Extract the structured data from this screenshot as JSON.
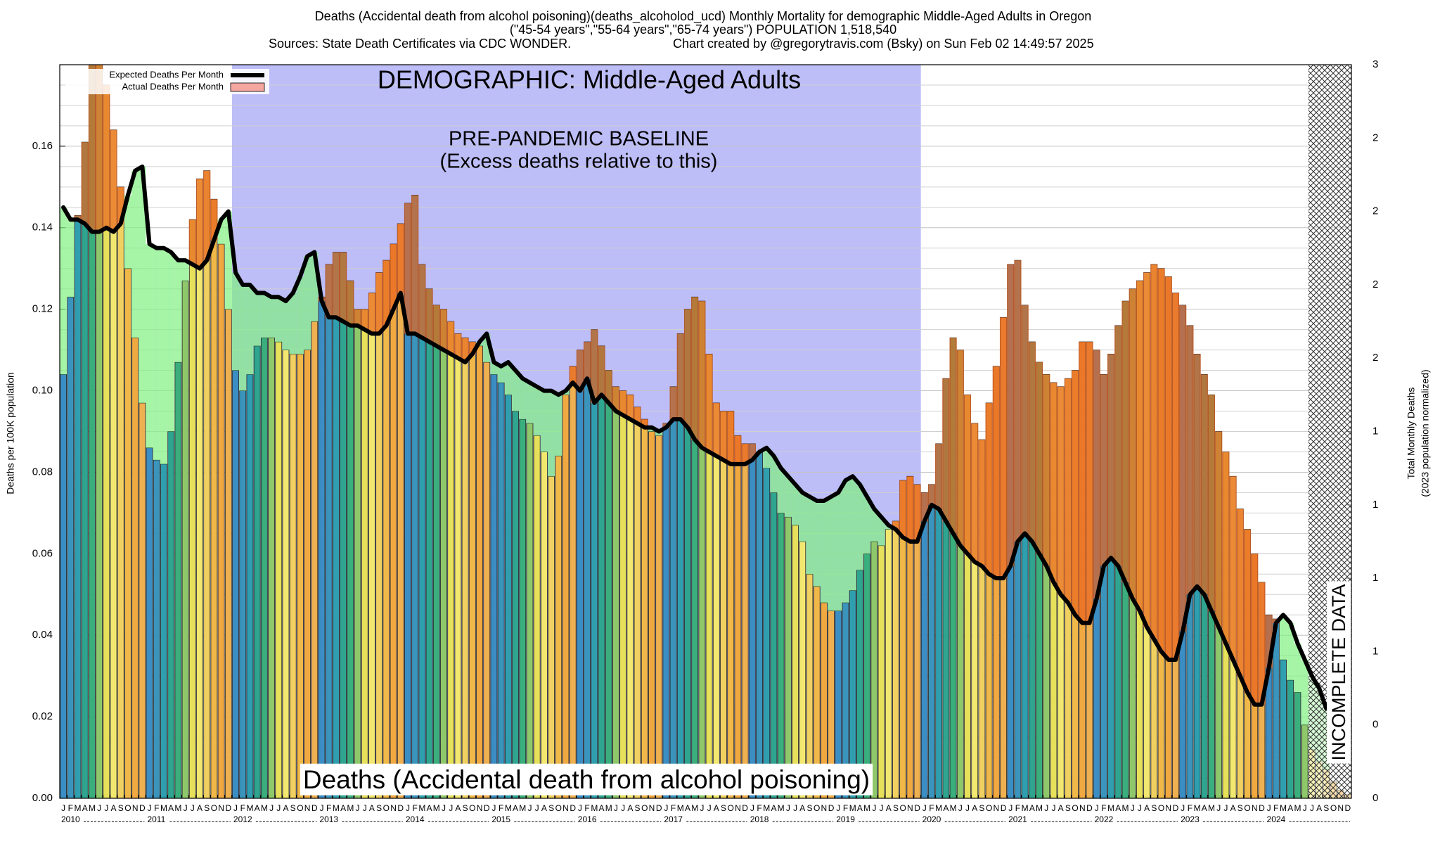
{
  "chart_data": {
    "type": "bar",
    "title": "Deaths (Accidental death from alcohol poisoning)(deaths_alcoholod_ucd) Monthly Mortality for demographic Middle-Aged Adults in Oregon",
    "subtitle": "(\"45-54 years\",\"55-64 years\",\"65-74 years\") POPULATION 1,518,540",
    "source": "Sources: State Death Certificates via CDC WONDER.",
    "credit": "Chart created by @gregorytravis.com (Bsky) on Sun Feb 02 14:49:57 2025",
    "y_label": "Deaths per 100K population",
    "y2_label": "Total Monthly Deaths",
    "y2_sublabel": "(2023 population normalized)",
    "annotations": {
      "demographic": "DEMOGRAPHIC: Middle-Aged Adults",
      "baseline": "PRE-PANDEMIC BASELINE",
      "baseline_note": "(Excess deaths relative to this)",
      "incomplete": "INCOMPLETE DATA",
      "cause": "Deaths (Accidental death from alcohol poisoning)"
    },
    "categories": [
      "J",
      "F",
      "M",
      "A",
      "M",
      "J",
      "J",
      "A",
      "S",
      "O",
      "N",
      "D",
      "J",
      "F",
      "M",
      "A",
      "M",
      "J",
      "J",
      "A",
      "S",
      "O",
      "N",
      "D",
      "J",
      "F",
      "M",
      "A",
      "M",
      "J",
      "J",
      "A",
      "S",
      "O",
      "N",
      "D",
      "J",
      "F",
      "M",
      "A",
      "M",
      "J",
      "J",
      "A",
      "S",
      "O",
      "N",
      "D",
      "J",
      "F",
      "M",
      "A",
      "M",
      "J",
      "J",
      "A",
      "S",
      "O",
      "N",
      "D",
      "J",
      "F",
      "M",
      "A",
      "M",
      "J",
      "J",
      "A",
      "S",
      "O",
      "N",
      "D",
      "J",
      "F",
      "M",
      "A",
      "M",
      "J",
      "J",
      "A",
      "S",
      "O",
      "N",
      "D",
      "J",
      "F",
      "M",
      "A",
      "M",
      "J",
      "J",
      "A",
      "S",
      "O",
      "N",
      "D",
      "J",
      "F",
      "M",
      "A",
      "M",
      "J",
      "J",
      "A",
      "S",
      "O",
      "N",
      "D",
      "J",
      "F",
      "M",
      "A",
      "M",
      "J",
      "J",
      "A",
      "S",
      "O",
      "N",
      "D",
      "J",
      "F",
      "M",
      "A",
      "M",
      "J",
      "J",
      "A",
      "S",
      "O",
      "N",
      "D",
      "J",
      "F",
      "M",
      "A",
      "M",
      "J",
      "J",
      "A",
      "S",
      "O",
      "N",
      "D",
      "J",
      "F",
      "M",
      "A",
      "M",
      "J",
      "J",
      "A",
      "S",
      "O",
      "N",
      "D",
      "J",
      "F",
      "M",
      "A",
      "M",
      "J",
      "J",
      "A",
      "S",
      "O",
      "N",
      "D",
      "J",
      "F",
      "M",
      "A",
      "M",
      "J",
      "J",
      "A",
      "S",
      "O",
      "N",
      "D"
    ],
    "years": [
      "2010",
      "2011",
      "2012",
      "2013",
      "2014",
      "2015",
      "2016",
      "2017",
      "2018",
      "2019",
      "2020",
      "2021",
      "2022",
      "2023",
      "2024"
    ],
    "month_colors": [
      "#3b8ec4",
      "#3a94bc",
      "#2f9fb0",
      "#2fa590",
      "#3aae7c",
      "#8ec86a",
      "#e6e05a",
      "#f2e870",
      "#f0d060",
      "#f0b848",
      "#f0a840",
      "#eeb050"
    ],
    "excess_color": "#e8641e",
    "deficit_color": "#80f080",
    "series": [
      {
        "name": "Expected Deaths Per Month",
        "color": "#000000",
        "values": [
          0.145,
          0.142,
          0.142,
          0.141,
          0.139,
          0.139,
          0.14,
          0.139,
          0.141,
          0.148,
          0.154,
          0.155,
          0.136,
          0.135,
          0.135,
          0.134,
          0.132,
          0.132,
          0.131,
          0.13,
          0.132,
          0.137,
          0.142,
          0.144,
          0.129,
          0.126,
          0.126,
          0.124,
          0.124,
          0.123,
          0.123,
          0.122,
          0.124,
          0.128,
          0.133,
          0.134,
          0.122,
          0.118,
          0.118,
          0.117,
          0.116,
          0.116,
          0.115,
          0.114,
          0.114,
          0.116,
          0.12,
          0.124,
          0.114,
          0.114,
          0.113,
          0.112,
          0.111,
          0.11,
          0.109,
          0.108,
          0.107,
          0.109,
          0.112,
          0.114,
          0.107,
          0.106,
          0.107,
          0.105,
          0.103,
          0.102,
          0.101,
          0.1,
          0.1,
          0.099,
          0.1,
          0.102,
          0.1,
          0.103,
          0.097,
          0.099,
          0.097,
          0.095,
          0.094,
          0.093,
          0.092,
          0.091,
          0.091,
          0.09,
          0.091,
          0.093,
          0.093,
          0.091,
          0.088,
          0.086,
          0.085,
          0.084,
          0.083,
          0.082,
          0.082,
          0.082,
          0.083,
          0.085,
          0.086,
          0.084,
          0.081,
          0.079,
          0.077,
          0.075,
          0.074,
          0.073,
          0.073,
          0.074,
          0.075,
          0.078,
          0.079,
          0.077,
          0.074,
          0.071,
          0.069,
          0.067,
          0.066,
          0.064,
          0.063,
          0.063,
          0.068,
          0.072,
          0.071,
          0.068,
          0.065,
          0.062,
          0.06,
          0.058,
          0.057,
          0.055,
          0.054,
          0.054,
          0.057,
          0.063,
          0.065,
          0.063,
          0.06,
          0.057,
          0.053,
          0.05,
          0.048,
          0.045,
          0.043,
          0.043,
          0.049,
          0.057,
          0.059,
          0.057,
          0.053,
          0.049,
          0.046,
          0.042,
          0.039,
          0.036,
          0.034,
          0.034,
          0.041,
          0.05,
          0.052,
          0.05,
          0.046,
          0.042,
          0.038,
          0.034,
          0.03,
          0.026,
          0.023,
          0.023,
          0.032,
          0.043,
          0.045,
          0.043,
          0.038,
          0.034,
          0.03,
          0.027,
          0.022,
          null,
          null,
          null
        ]
      },
      {
        "name": "Actual Deaths Per Month",
        "color": "#f4a6a0",
        "values": [
          0.104,
          0.123,
          0.143,
          0.161,
          0.18,
          0.18,
          0.175,
          0.164,
          0.15,
          0.13,
          0.113,
          0.097,
          0.086,
          0.083,
          0.082,
          0.09,
          0.107,
          0.127,
          0.142,
          0.152,
          0.154,
          0.147,
          0.136,
          0.12,
          0.105,
          0.1,
          0.104,
          0.111,
          0.113,
          0.113,
          0.112,
          0.11,
          0.109,
          0.109,
          0.11,
          0.117,
          0.123,
          0.131,
          0.134,
          0.134,
          0.127,
          0.12,
          0.12,
          0.124,
          0.129,
          0.132,
          0.136,
          0.141,
          0.146,
          0.148,
          0.131,
          0.125,
          0.121,
          0.12,
          0.117,
          0.114,
          0.113,
          0.112,
          0.111,
          0.107,
          0.104,
          0.102,
          0.099,
          0.095,
          0.093,
          0.092,
          0.089,
          0.085,
          0.079,
          0.084,
          0.099,
          0.106,
          0.11,
          0.112,
          0.115,
          0.111,
          0.105,
          0.101,
          0.1,
          0.099,
          0.096,
          0.093,
          0.09,
          0.089,
          0.092,
          0.101,
          0.114,
          0.12,
          0.123,
          0.122,
          0.109,
          0.097,
          0.095,
          0.095,
          0.089,
          0.087,
          0.087,
          0.085,
          0.081,
          0.075,
          0.07,
          0.069,
          0.067,
          0.063,
          0.055,
          0.052,
          0.048,
          0.046,
          0.046,
          0.048,
          0.051,
          0.056,
          0.06,
          0.063,
          0.062,
          0.066,
          0.068,
          0.078,
          0.079,
          0.077,
          0.075,
          0.077,
          0.087,
          0.103,
          0.113,
          0.11,
          0.099,
          0.092,
          0.088,
          0.097,
          0.106,
          0.118,
          0.131,
          0.132,
          0.121,
          0.112,
          0.107,
          0.104,
          0.102,
          0.101,
          0.103,
          0.105,
          0.112,
          0.112,
          0.11,
          0.104,
          0.109,
          0.116,
          0.122,
          0.125,
          0.127,
          0.129,
          0.131,
          0.13,
          0.128,
          0.124,
          0.121,
          0.116,
          0.109,
          0.104,
          0.099,
          0.09,
          0.085,
          0.079,
          0.071,
          0.066,
          0.06,
          0.053,
          0.045,
          0.044,
          0.034,
          0.029,
          0.026,
          0.018,
          0.012,
          0.009,
          0.007,
          0.004,
          0.002,
          0.001
        ]
      }
    ],
    "ylim": [
      0,
      0.18
    ],
    "yticks": [
      {
        "value": 0,
        "label": "0.00"
      },
      0.02,
      0.04,
      0.06,
      0.08,
      {
        "value": 0.1,
        "label": "0.10"
      },
      0.12,
      0.14,
      0.16
    ],
    "y2lim": [
      0,
      3
    ],
    "y2ticks": [
      {
        "value": 0,
        "label": "0"
      },
      {
        "value": 0.3,
        "label": "0"
      },
      {
        "value": 0.6,
        "label": "1"
      },
      {
        "value": 0.9,
        "label": "1"
      },
      {
        "value": 1.2,
        "label": "1"
      },
      {
        "value": 1.5,
        "label": "1"
      },
      {
        "value": 1.8,
        "label": "2"
      },
      {
        "value": 2.1,
        "label": "2"
      },
      {
        "value": 2.4,
        "label": "2"
      },
      {
        "value": 2.7,
        "label": "2"
      },
      {
        "value": 3,
        "label": "3"
      }
    ],
    "grid": true,
    "legend": "upper left"
  }
}
